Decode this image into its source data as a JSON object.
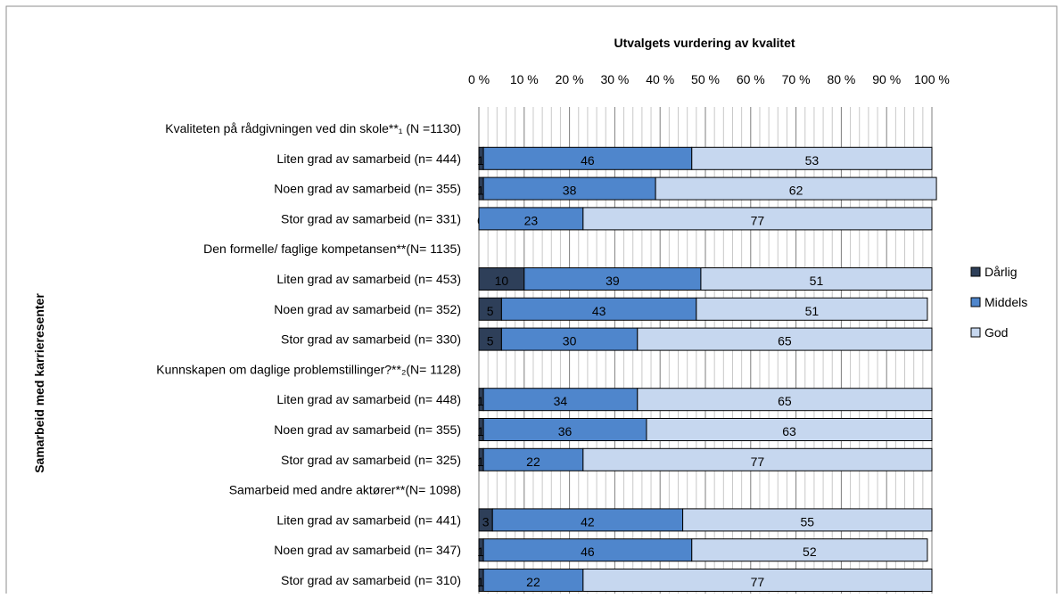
{
  "chart_data": {
    "type": "bar",
    "orientation": "horizontal",
    "stacked": "percent",
    "title": "Utvalgets vurdering av kvalitet",
    "ylabel": "Samarbeid med karrieresenter",
    "xlim": [
      0,
      100
    ],
    "x_ticks": [
      "0 %",
      "10 %",
      "20 %",
      "30 %",
      "40 %",
      "50 %",
      "60 %",
      "70 %",
      "80 %",
      "90 %",
      "100 %"
    ],
    "grid": true,
    "legend_position": "right",
    "categories": [
      "Kvaliteten på rådgivningen ved din skole**₁ (N =1130)",
      "Liten grad av samarbeid (n= 444)",
      "Noen grad av samarbeid (n= 355)",
      "Stor grad av samarbeid (n= 331)",
      "Den formelle/ faglige kompetansen**(N= 1135)",
      "Liten grad av samarbeid (n= 453)",
      "Noen grad av samarbeid  (n= 352)",
      "Stor grad av samarbeid (n= 330)",
      "Kunnskapen om daglige problemstillinger?**₂(N= 1128)",
      "Liten grad av samarbeid (n= 448)",
      "Noen grad av samarbeid (n= 355)",
      "Stor grad av samarbeid (n= 325)",
      "Samarbeid med andre aktører**(N= 1098)",
      "Liten grad av samarbeid (n= 441)",
      "Noen grad av samarbeid  (n= 347)",
      "Stor grad av samarbeid (n= 310)"
    ],
    "series": [
      {
        "name": "Dårlig",
        "color": "#2e3f59",
        "values": [
          null,
          1,
          1,
          0,
          null,
          10,
          5,
          5,
          null,
          1,
          1,
          1,
          null,
          3,
          1,
          1
        ]
      },
      {
        "name": "Middels",
        "color": "#4f86cc",
        "values": [
          null,
          46,
          38,
          23,
          null,
          39,
          43,
          30,
          null,
          34,
          36,
          22,
          null,
          42,
          46,
          22
        ]
      },
      {
        "name": "God",
        "color": "#c6d7ef",
        "values": [
          null,
          53,
          62,
          77,
          null,
          51,
          51,
          65,
          null,
          65,
          63,
          77,
          null,
          55,
          52,
          77
        ]
      }
    ]
  }
}
